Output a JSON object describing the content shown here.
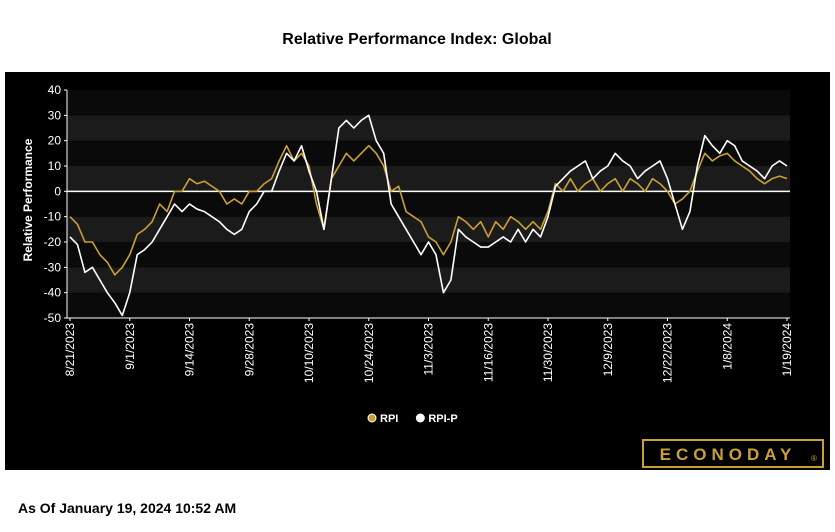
{
  "chart_data": {
    "type": "line",
    "title": "Relative Performance Index: Global",
    "y_label": "Relative Performance",
    "x": [
      "8/21/2023",
      null,
      null,
      null,
      null,
      null,
      null,
      null,
      "9/1/2023",
      null,
      null,
      null,
      null,
      null,
      null,
      null,
      "9/14/2023",
      null,
      null,
      null,
      null,
      null,
      null,
      null,
      "9/28/2023",
      null,
      null,
      null,
      null,
      null,
      null,
      null,
      "10/10/2023",
      null,
      null,
      null,
      null,
      null,
      null,
      null,
      "10/24/2023",
      null,
      null,
      null,
      null,
      null,
      null,
      null,
      "11/3/2023",
      null,
      null,
      null,
      null,
      null,
      null,
      null,
      "11/16/2023",
      null,
      null,
      null,
      null,
      null,
      null,
      null,
      "11/30/2023",
      null,
      null,
      null,
      null,
      null,
      null,
      null,
      "12/9/2023",
      null,
      null,
      null,
      null,
      null,
      null,
      null,
      "12/22/2023",
      null,
      null,
      null,
      null,
      null,
      null,
      null,
      "1/8/2024",
      null,
      null,
      null,
      null,
      null,
      null,
      null,
      "1/19/2024"
    ],
    "series": [
      {
        "name": "RPI",
        "color": "#c9a033",
        "values": [
          -10,
          -13,
          -20,
          -20,
          -25,
          -28,
          -33,
          -30,
          -25,
          -17,
          -15,
          -12,
          -5,
          -8,
          0,
          0,
          5,
          3,
          4,
          2,
          0,
          -5,
          -3,
          -5,
          0,
          0,
          3,
          5,
          12,
          18,
          12,
          15,
          10,
          -5,
          -15,
          5,
          10,
          15,
          12,
          15,
          18,
          15,
          10,
          0,
          2,
          -8,
          -10,
          -12,
          -18,
          -20,
          -25,
          -20,
          -10,
          -12,
          -15,
          -12,
          -18,
          -12,
          -15,
          -10,
          -12,
          -15,
          -12,
          -15,
          -8,
          3,
          0,
          5,
          0,
          3,
          5,
          0,
          3,
          5,
          0,
          5,
          3,
          0,
          5,
          3,
          0,
          -5,
          -3,
          0,
          8,
          15,
          12,
          14,
          15,
          12,
          10,
          8,
          5,
          3,
          5,
          6,
          5
        ]
      },
      {
        "name": "RPI-P",
        "color": "#ffffff",
        "values": [
          -18,
          -21,
          -32,
          -30,
          -35,
          -40,
          -44,
          -49,
          -40,
          -25,
          -23,
          -20,
          -15,
          -10,
          -5,
          -8,
          -5,
          -7,
          -8,
          -10,
          -12,
          -15,
          -17,
          -15,
          -8,
          -5,
          0,
          0,
          8,
          15,
          12,
          18,
          8,
          0,
          -15,
          5,
          25,
          28,
          25,
          28,
          30,
          20,
          15,
          -5,
          -10,
          -15,
          -20,
          -25,
          -20,
          -25,
          -40,
          -35,
          -15,
          -18,
          -20,
          -22,
          -22,
          -20,
          -18,
          -20,
          -15,
          -20,
          -15,
          -18,
          -10,
          2,
          5,
          8,
          10,
          12,
          5,
          8,
          10,
          15,
          12,
          10,
          5,
          8,
          10,
          12,
          5,
          -5,
          -15,
          -8,
          10,
          22,
          18,
          15,
          20,
          18,
          12,
          10,
          8,
          5,
          10,
          12,
          10
        ]
      }
    ],
    "ylim": [
      -50,
      40
    ],
    "yticks": [
      -50,
      -40,
      -30,
      -20,
      -10,
      0,
      10,
      20,
      30,
      40
    ],
    "grid": true,
    "legend": "bottom"
  },
  "logo": {
    "text": "ECONODAY",
    "mark": "®"
  },
  "footer": {
    "as_of": "As Of January 19, 2024 10:52 AM"
  }
}
